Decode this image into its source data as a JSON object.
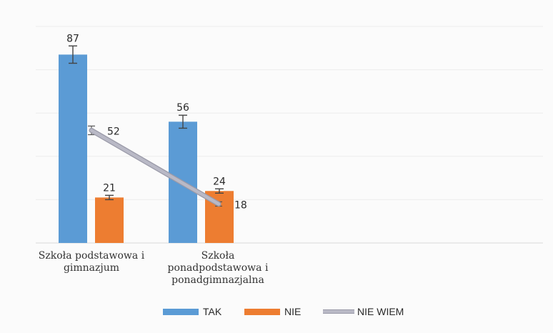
{
  "chart_data": {
    "type": "bar",
    "categories": [
      "Szkoła podstawowa i gimnazjum",
      "Szkoła ponadpodstawowa i ponadgimnazjalna"
    ],
    "category_lines": [
      [
        "Szkoła podstawowa i",
        "gimnazjum"
      ],
      [
        "Szkoła",
        "ponadpodstawowa i",
        "ponadgimnazjalna"
      ]
    ],
    "series": [
      {
        "name": "TAK",
        "kind": "bar",
        "color": "#5b9bd5",
        "values": [
          87,
          56
        ],
        "labels": [
          "87",
          "56"
        ],
        "error": [
          4,
          3
        ]
      },
      {
        "name": "NIE",
        "kind": "bar",
        "color": "#ed7d31",
        "values": [
          21,
          24
        ],
        "labels": [
          "21",
          "24"
        ],
        "error": [
          1,
          1
        ]
      },
      {
        "name": "NIE WIEM",
        "kind": "line",
        "color": "#b9b9c6",
        "values": [
          52,
          18
        ],
        "labels": [
          "52",
          "18"
        ],
        "error": [
          2,
          1
        ]
      }
    ],
    "ylim": [
      0,
      100
    ],
    "grid": true,
    "legend": "bottom",
    "title": "",
    "xlabel": "",
    "ylabel": ""
  }
}
